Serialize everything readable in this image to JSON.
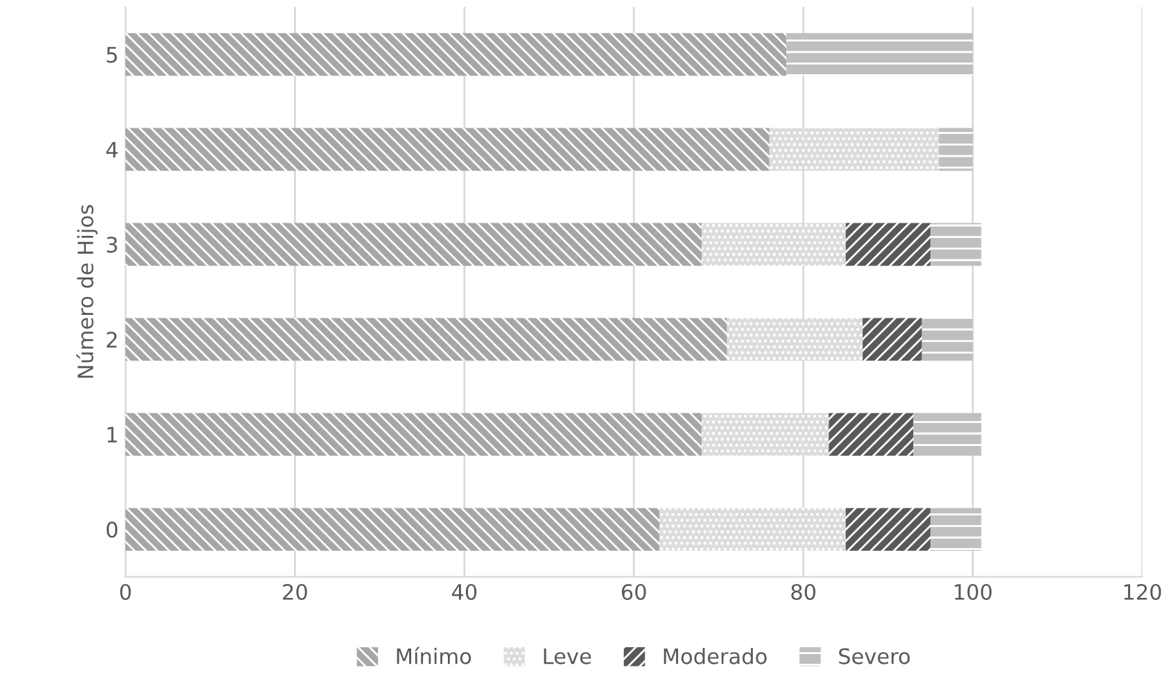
{
  "chart_data": {
    "type": "bar",
    "orientation": "horizontal",
    "stacked": true,
    "ylabel": "Número de Hijos",
    "categories": [
      "5",
      "4",
      "3",
      "2",
      "1",
      "0"
    ],
    "series": [
      {
        "name": "Mínimo",
        "color": "#a6a6a6",
        "values": [
          78,
          76,
          68,
          71,
          68,
          63
        ]
      },
      {
        "name": "Leve",
        "color": "#dcdcdc",
        "values": [
          0,
          20,
          17,
          16,
          15,
          22
        ]
      },
      {
        "name": "Moderado",
        "color": "#595959",
        "values": [
          0,
          0,
          10,
          7,
          10,
          10
        ]
      },
      {
        "name": "Severo",
        "color": "#bfbfbf",
        "values": [
          22,
          4,
          6,
          6,
          8,
          6
        ]
      }
    ],
    "xlim": [
      0,
      120
    ],
    "xticks": [
      0,
      20,
      40,
      60,
      80,
      100,
      120
    ],
    "grid": "x",
    "legend": "bottom"
  }
}
